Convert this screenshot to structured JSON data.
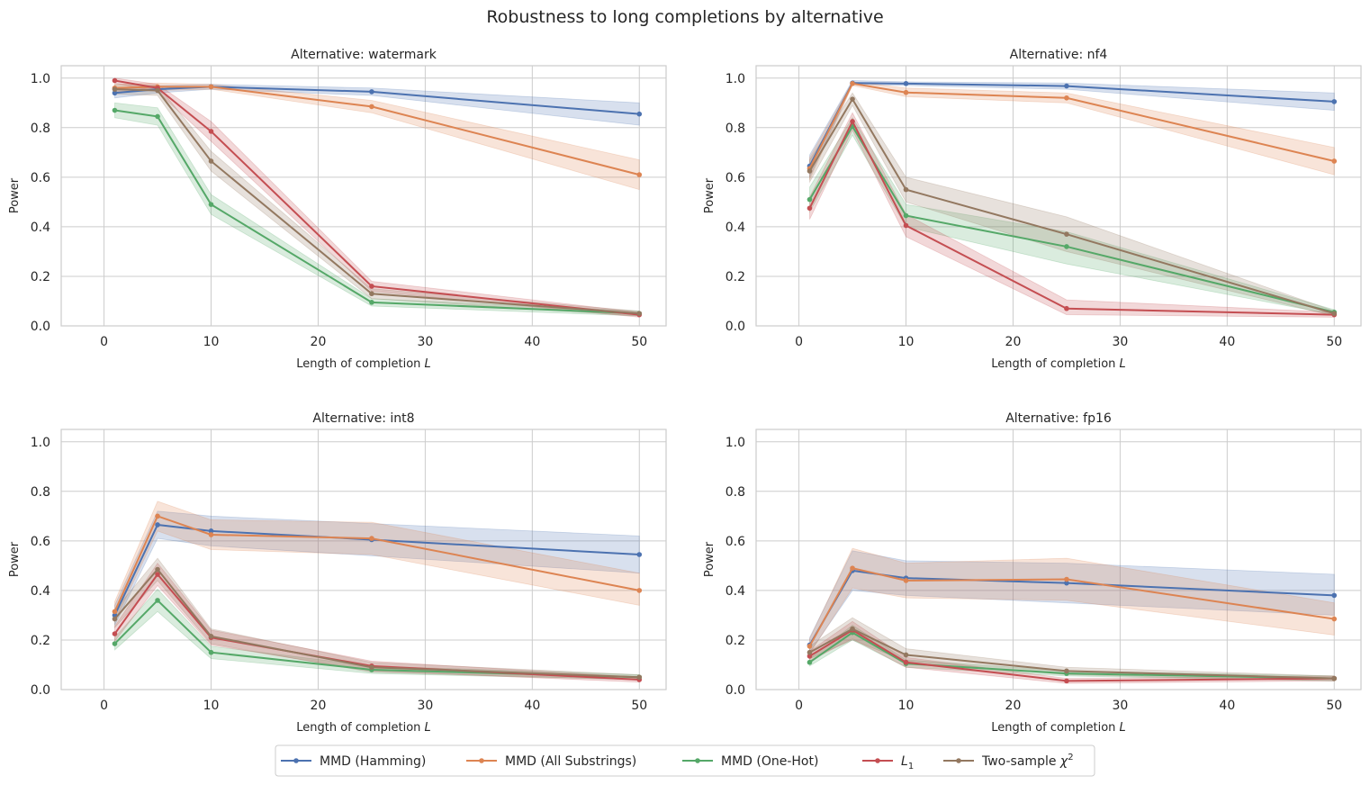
{
  "figure": {
    "title": "Robustness to long completions by alternative"
  },
  "legend": {
    "placement": "bottom-center",
    "entries": [
      {
        "label": "MMD (Hamming)",
        "color": "#4c72b0"
      },
      {
        "label": "MMD (All Substrings)",
        "color": "#dd8452"
      },
      {
        "label": "MMD (One-Hot)",
        "color": "#55a868"
      },
      {
        "label": "L",
        "subscript": "1",
        "color": "#c44e52"
      },
      {
        "label": "Two-sample χ",
        "superscript": "2",
        "color": "#937860"
      }
    ]
  },
  "chart_data": [
    {
      "type": "line",
      "title": "Alternative: watermark",
      "xlabel": "Length of completion L",
      "ylabel": "Power",
      "xlim": [
        -4,
        52.5
      ],
      "ylim": [
        0,
        1.05
      ],
      "xticks": [
        0,
        10,
        20,
        30,
        40,
        50
      ],
      "yticks": [
        0.0,
        0.2,
        0.4,
        0.6,
        0.8,
        1.0
      ],
      "grid": true,
      "x": [
        1,
        5,
        10,
        25,
        50
      ],
      "series": [
        {
          "name": "MMD (Hamming)",
          "values": [
            0.94,
            0.955,
            0.965,
            0.945,
            0.855
          ],
          "lower": [
            0.92,
            0.94,
            0.955,
            0.93,
            0.81
          ],
          "upper": [
            0.96,
            0.97,
            0.975,
            0.96,
            0.9
          ]
        },
        {
          "name": "MMD (All Substrings)",
          "values": [
            0.96,
            0.965,
            0.965,
            0.885,
            0.61
          ],
          "lower": [
            0.945,
            0.95,
            0.955,
            0.86,
            0.55
          ],
          "upper": [
            0.975,
            0.98,
            0.975,
            0.91,
            0.67
          ]
        },
        {
          "name": "MMD (One-Hot)",
          "values": [
            0.87,
            0.845,
            0.49,
            0.095,
            0.05
          ],
          "lower": [
            0.84,
            0.81,
            0.45,
            0.08,
            0.04
          ],
          "upper": [
            0.9,
            0.88,
            0.53,
            0.11,
            0.06
          ]
        },
        {
          "name": "L1",
          "values": [
            0.99,
            0.96,
            0.785,
            0.16,
            0.045
          ],
          "lower": [
            0.98,
            0.945,
            0.745,
            0.14,
            0.035
          ],
          "upper": [
            1.0,
            0.975,
            0.825,
            0.18,
            0.055
          ]
        },
        {
          "name": "Two-sample χ2",
          "values": [
            0.955,
            0.95,
            0.665,
            0.13,
            0.05
          ],
          "lower": [
            0.935,
            0.93,
            0.625,
            0.11,
            0.04
          ],
          "upper": [
            0.975,
            0.97,
            0.705,
            0.15,
            0.06
          ]
        }
      ]
    },
    {
      "type": "line",
      "title": "Alternative: nf4",
      "xlabel": "Length of completion L",
      "ylabel": "Power",
      "xlim": [
        -4,
        52.5
      ],
      "ylim": [
        0,
        1.05
      ],
      "xticks": [
        0,
        10,
        20,
        30,
        40,
        50
      ],
      "yticks": [
        0.0,
        0.2,
        0.4,
        0.6,
        0.8,
        1.0
      ],
      "grid": true,
      "x": [
        1,
        5,
        10,
        25,
        50
      ],
      "series": [
        {
          "name": "MMD (Hamming)",
          "values": [
            0.645,
            0.98,
            0.978,
            0.968,
            0.905
          ],
          "lower": [
            0.6,
            0.975,
            0.97,
            0.955,
            0.87
          ],
          "upper": [
            0.69,
            0.99,
            0.985,
            0.98,
            0.94
          ]
        },
        {
          "name": "MMD (All Substrings)",
          "values": [
            0.635,
            0.978,
            0.942,
            0.92,
            0.665
          ],
          "lower": [
            0.59,
            0.97,
            0.925,
            0.9,
            0.61
          ],
          "upper": [
            0.68,
            0.985,
            0.96,
            0.94,
            0.72
          ]
        },
        {
          "name": "MMD (One-Hot)",
          "values": [
            0.51,
            0.805,
            0.445,
            0.32,
            0.055
          ],
          "lower": [
            0.46,
            0.77,
            0.4,
            0.25,
            0.045
          ],
          "upper": [
            0.56,
            0.84,
            0.49,
            0.38,
            0.065
          ]
        },
        {
          "name": "L1",
          "values": [
            0.475,
            0.825,
            0.405,
            0.07,
            0.045
          ],
          "lower": [
            0.43,
            0.79,
            0.36,
            0.045,
            0.035
          ],
          "upper": [
            0.52,
            0.86,
            0.45,
            0.105,
            0.055
          ]
        },
        {
          "name": "Two-sample χ2",
          "values": [
            0.625,
            0.915,
            0.55,
            0.37,
            0.05
          ],
          "lower": [
            0.58,
            0.89,
            0.5,
            0.3,
            0.04
          ],
          "upper": [
            0.67,
            0.94,
            0.6,
            0.44,
            0.06
          ]
        }
      ]
    },
    {
      "type": "line",
      "title": "Alternative: int8",
      "xlabel": "Length of completion L",
      "ylabel": "Power",
      "xlim": [
        -4,
        52.5
      ],
      "ylim": [
        0,
        1.05
      ],
      "xticks": [
        0,
        10,
        20,
        30,
        40,
        50
      ],
      "yticks": [
        0.0,
        0.2,
        0.4,
        0.6,
        0.8,
        1.0
      ],
      "grid": true,
      "x": [
        1,
        5,
        10,
        25,
        50
      ],
      "series": [
        {
          "name": "MMD (Hamming)",
          "values": [
            0.3,
            0.665,
            0.64,
            0.605,
            0.545
          ],
          "lower": [
            0.26,
            0.61,
            0.58,
            0.54,
            0.47
          ],
          "upper": [
            0.34,
            0.72,
            0.7,
            0.67,
            0.62
          ]
        },
        {
          "name": "MMD (All Substrings)",
          "values": [
            0.315,
            0.7,
            0.625,
            0.61,
            0.4
          ],
          "lower": [
            0.275,
            0.64,
            0.565,
            0.545,
            0.34
          ],
          "upper": [
            0.355,
            0.76,
            0.685,
            0.675,
            0.47
          ]
        },
        {
          "name": "MMD (One-Hot)",
          "values": [
            0.185,
            0.36,
            0.15,
            0.08,
            0.05
          ],
          "lower": [
            0.16,
            0.315,
            0.125,
            0.065,
            0.04
          ],
          "upper": [
            0.21,
            0.405,
            0.175,
            0.095,
            0.06
          ]
        },
        {
          "name": "L1",
          "values": [
            0.225,
            0.465,
            0.21,
            0.095,
            0.04
          ],
          "lower": [
            0.195,
            0.42,
            0.18,
            0.075,
            0.03
          ],
          "upper": [
            0.255,
            0.51,
            0.24,
            0.115,
            0.05
          ]
        },
        {
          "name": "Two-sample χ2",
          "values": [
            0.285,
            0.485,
            0.215,
            0.09,
            0.05
          ],
          "lower": [
            0.25,
            0.44,
            0.185,
            0.07,
            0.04
          ],
          "upper": [
            0.32,
            0.53,
            0.245,
            0.11,
            0.06
          ]
        }
      ]
    },
    {
      "type": "line",
      "title": "Alternative: fp16",
      "xlabel": "Length of completion L",
      "ylabel": "Power",
      "xlim": [
        -4,
        52.5
      ],
      "ylim": [
        0,
        1.05
      ],
      "xticks": [
        0,
        10,
        20,
        30,
        40,
        50
      ],
      "yticks": [
        0.0,
        0.2,
        0.4,
        0.6,
        0.8,
        1.0
      ],
      "grid": true,
      "x": [
        1,
        5,
        10,
        25,
        50
      ],
      "series": [
        {
          "name": "MMD (Hamming)",
          "values": [
            0.18,
            0.48,
            0.45,
            0.43,
            0.38
          ],
          "lower": [
            0.15,
            0.4,
            0.38,
            0.35,
            0.3
          ],
          "upper": [
            0.21,
            0.56,
            0.52,
            0.51,
            0.465
          ]
        },
        {
          "name": "MMD (All Substrings)",
          "values": [
            0.175,
            0.49,
            0.44,
            0.445,
            0.285
          ],
          "lower": [
            0.145,
            0.41,
            0.37,
            0.36,
            0.22
          ],
          "upper": [
            0.205,
            0.57,
            0.51,
            0.53,
            0.35
          ]
        },
        {
          "name": "MMD (One-Hot)",
          "values": [
            0.11,
            0.23,
            0.105,
            0.065,
            0.045
          ],
          "lower": [
            0.095,
            0.2,
            0.09,
            0.055,
            0.035
          ],
          "upper": [
            0.125,
            0.26,
            0.12,
            0.075,
            0.055
          ]
        },
        {
          "name": "L1",
          "values": [
            0.135,
            0.24,
            0.11,
            0.035,
            0.045
          ],
          "lower": [
            0.115,
            0.205,
            0.09,
            0.025,
            0.035
          ],
          "upper": [
            0.155,
            0.275,
            0.13,
            0.045,
            0.055
          ]
        },
        {
          "name": "Two-sample χ2",
          "values": [
            0.15,
            0.245,
            0.14,
            0.075,
            0.045
          ],
          "lower": [
            0.125,
            0.2,
            0.115,
            0.06,
            0.035
          ],
          "upper": [
            0.175,
            0.29,
            0.165,
            0.09,
            0.055
          ]
        }
      ]
    }
  ]
}
